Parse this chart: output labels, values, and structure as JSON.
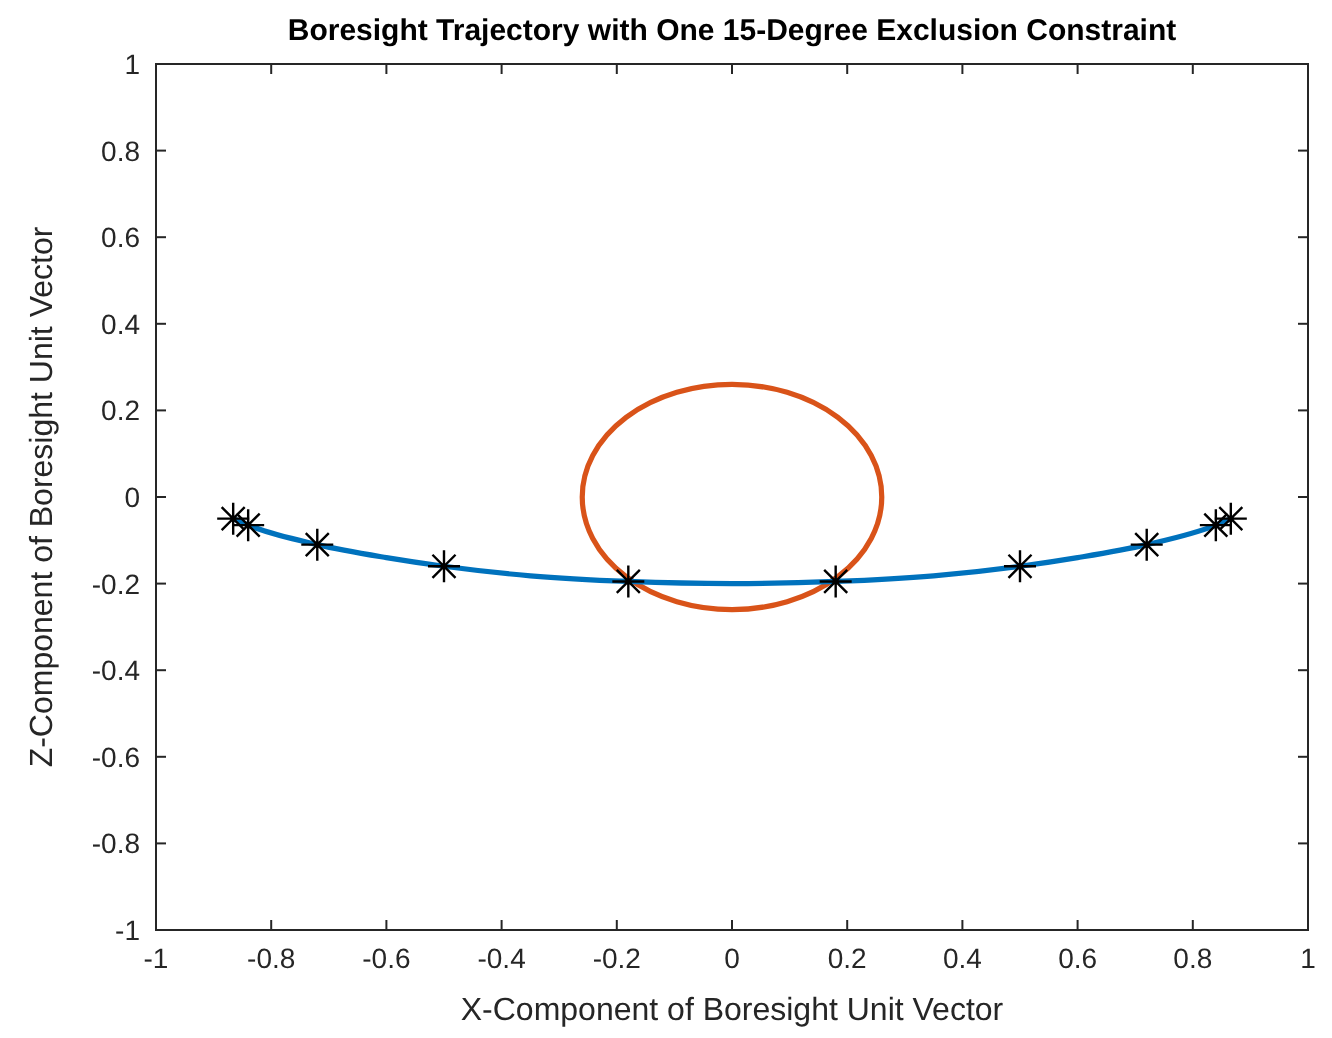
{
  "chart_data": {
    "type": "line",
    "title": "Boresight Trajectory with One 15-Degree Exclusion Constraint",
    "xlabel": "X-Component of Boresight Unit Vector",
    "ylabel": "Z-Component of Boresight Unit Vector",
    "xlim": [
      -1,
      1
    ],
    "ylim": [
      -1,
      1
    ],
    "xticks": [
      -1,
      -0.8,
      -0.6,
      -0.4,
      -0.2,
      0,
      0.2,
      0.4,
      0.6,
      0.8,
      1
    ],
    "yticks": [
      -1,
      -0.8,
      -0.6,
      -0.4,
      -0.2,
      0,
      0.2,
      0.4,
      0.6,
      0.8,
      1
    ],
    "grid": false,
    "series": [
      {
        "color": "#0072bd",
        "x": [
          -0.866,
          -0.84,
          -0.72,
          -0.6,
          -0.5,
          -0.35,
          -0.18,
          0,
          0.18,
          0.35,
          0.5,
          0.6,
          0.72,
          0.84,
          0.866
        ],
        "values": [
          -0.05,
          -0.065,
          -0.11,
          -0.14,
          -0.16,
          -0.182,
          -0.195,
          -0.2,
          -0.195,
          -0.182,
          -0.16,
          -0.14,
          -0.11,
          -0.065,
          -0.05
        ]
      },
      {
        "type": "scatter",
        "color": "#000000",
        "marker": "cross",
        "x": [
          -0.866,
          -0.84,
          -0.72,
          -0.5,
          -0.18,
          0.18,
          0.5,
          0.72,
          0.84,
          0.866
        ],
        "values": [
          -0.05,
          -0.065,
          -0.11,
          -0.16,
          -0.195,
          -0.195,
          -0.16,
          -0.11,
          -0.065,
          -0.05
        ]
      }
    ]
  }
}
